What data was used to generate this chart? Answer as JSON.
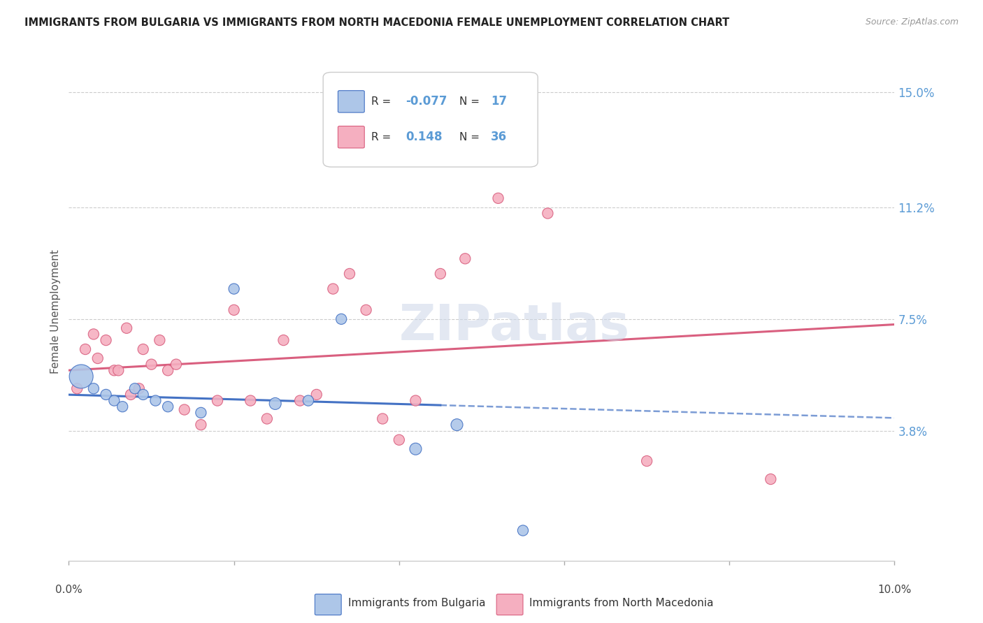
{
  "title": "IMMIGRANTS FROM BULGARIA VS IMMIGRANTS FROM NORTH MACEDONIA FEMALE UNEMPLOYMENT CORRELATION CHART",
  "source": "Source: ZipAtlas.com",
  "ylabel": "Female Unemployment",
  "xlim": [
    0.0,
    10.0
  ],
  "ylim": [
    -0.5,
    16.0
  ],
  "ytick_vals": [
    3.8,
    7.5,
    11.2,
    15.0
  ],
  "ytick_labels": [
    "3.8%",
    "7.5%",
    "11.2%",
    "15.0%"
  ],
  "watermark": "ZIPatlas",
  "blue_R": -0.077,
  "blue_N": 17,
  "pink_R": 0.148,
  "pink_N": 36,
  "blue_color": "#adc6e8",
  "pink_color": "#f5afc0",
  "blue_line_color": "#4472c4",
  "pink_line_color": "#d95f7f",
  "blue_x": [
    0.15,
    0.3,
    0.45,
    0.55,
    0.65,
    0.8,
    0.9,
    1.05,
    1.2,
    1.6,
    2.0,
    2.5,
    2.9,
    3.3,
    4.2,
    4.7,
    5.5
  ],
  "blue_y": [
    5.6,
    5.2,
    5.0,
    4.8,
    4.6,
    5.2,
    5.0,
    4.8,
    4.6,
    4.4,
    8.5,
    4.7,
    4.8,
    7.5,
    3.2,
    4.0,
    0.5
  ],
  "blue_size": [
    600,
    120,
    120,
    120,
    120,
    120,
    120,
    120,
    120,
    120,
    120,
    150,
    120,
    120,
    150,
    150,
    120
  ],
  "pink_x": [
    0.1,
    0.2,
    0.3,
    0.35,
    0.45,
    0.55,
    0.6,
    0.7,
    0.75,
    0.85,
    0.9,
    1.0,
    1.1,
    1.2,
    1.3,
    1.4,
    1.6,
    1.8,
    2.0,
    2.2,
    2.4,
    2.6,
    2.8,
    3.0,
    3.2,
    3.4,
    3.6,
    3.8,
    4.0,
    4.2,
    4.5,
    4.8,
    5.2,
    5.8,
    7.0,
    8.5
  ],
  "pink_y": [
    5.2,
    6.5,
    7.0,
    6.2,
    6.8,
    5.8,
    5.8,
    7.2,
    5.0,
    5.2,
    6.5,
    6.0,
    6.8,
    5.8,
    6.0,
    4.5,
    4.0,
    4.8,
    7.8,
    4.8,
    4.2,
    6.8,
    4.8,
    5.0,
    8.5,
    9.0,
    7.8,
    4.2,
    3.5,
    4.8,
    9.0,
    9.5,
    11.5,
    11.0,
    2.8,
    2.2
  ],
  "pink_size": [
    120,
    120,
    120,
    120,
    120,
    120,
    120,
    120,
    120,
    120,
    120,
    120,
    120,
    120,
    120,
    120,
    120,
    120,
    120,
    120,
    120,
    120,
    120,
    120,
    120,
    120,
    120,
    120,
    120,
    120,
    120,
    120,
    120,
    120,
    120,
    120
  ]
}
